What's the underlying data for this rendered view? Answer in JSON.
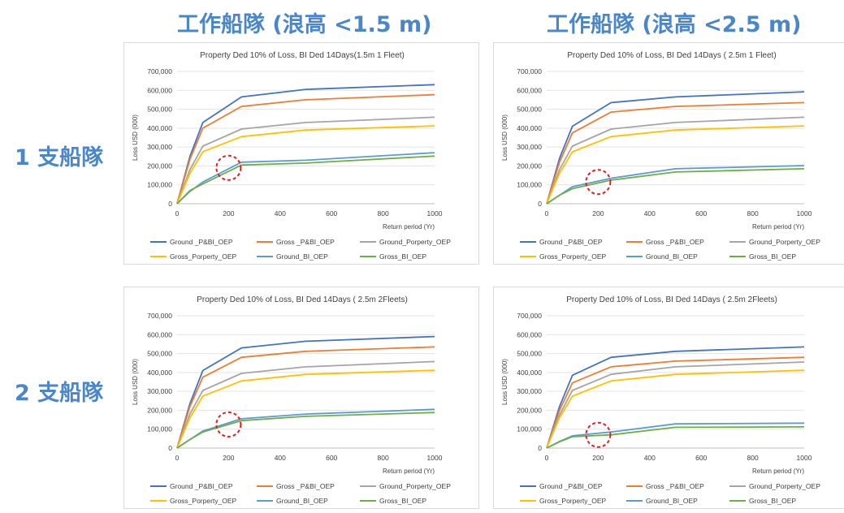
{
  "column_headers": [
    "工作船隊 (浪高 <1.5 m)",
    "工作船隊 (浪高 <2.5 m)"
  ],
  "row_headers": [
    "1 支船隊",
    "2 支船隊"
  ],
  "colors": {
    "Ground _P&BI_OEP": "#4472c4",
    "Gross _P&BI_OEP": "#ed7d31",
    "Ground_Porperty_OEP": "#a5a5a5",
    "Gross_Porperty_OEP": "#ffc000",
    "Ground_BI_OEP": "#5b9bd5",
    "Gross_BI_OEP": "#70ad47",
    "annotation_circle": "#e02020",
    "header_text": "#4a86c8"
  },
  "chart_data": [
    {
      "type": "line",
      "title": "Property Ded 10% of Loss, BI  Ded 14Days(1.5m 1 Fleet)",
      "xlabel": "Return period (Yr)",
      "ylabel": "Loss USD (000)",
      "xlim": [
        0,
        1000
      ],
      "ylim": [
        0,
        700000
      ],
      "xticks": [
        "0",
        "200",
        "400",
        "600",
        "800",
        "1000"
      ],
      "yticks": [
        "0",
        "100,000",
        "200,000",
        "300,000",
        "400,000",
        "500,000",
        "600,000",
        "700,000"
      ],
      "legend_position": "bottom",
      "annotation": {
        "type": "dashed-circle",
        "x": 200,
        "y": 190000
      },
      "x": [
        0,
        50,
        100,
        250,
        500,
        1000
      ],
      "series": [
        {
          "name": "Ground _P&BI_OEP",
          "values": [
            0,
            250000,
            430000,
            565000,
            605000,
            630000
          ]
        },
        {
          "name": "Gross _P&BI_OEP",
          "values": [
            0,
            235000,
            400000,
            515000,
            550000,
            577000
          ]
        },
        {
          "name": "Ground_Porperty_OEP",
          "values": [
            0,
            180000,
            305000,
            395000,
            430000,
            458000
          ]
        },
        {
          "name": "Gross_Porperty_OEP",
          "values": [
            0,
            160000,
            275000,
            355000,
            390000,
            412000
          ]
        },
        {
          "name": "Ground_BI_OEP",
          "values": [
            0,
            65000,
            115000,
            220000,
            230000,
            270000
          ]
        },
        {
          "name": "Gross_BI_OEP",
          "values": [
            0,
            70000,
            105000,
            205000,
            215000,
            252000
          ]
        }
      ]
    },
    {
      "type": "line",
      "title": "Property Ded 10% of Loss, BI  Ded 14Days ( 2.5m 1 Fleet)",
      "xlabel": "Return period (Yr)",
      "ylabel": "Loss USD (000)",
      "xlim": [
        0,
        1000
      ],
      "ylim": [
        0,
        700000
      ],
      "xticks": [
        "0",
        "200",
        "400",
        "600",
        "800",
        "1000"
      ],
      "yticks": [
        "0",
        "100,000",
        "200,000",
        "300,000",
        "400,000",
        "500,000",
        "600,000",
        "700,000"
      ],
      "legend_position": "bottom",
      "annotation": {
        "type": "dashed-circle",
        "x": 200,
        "y": 115000
      },
      "x": [
        0,
        50,
        100,
        250,
        500,
        1000
      ],
      "series": [
        {
          "name": "Ground _P&BI_OEP",
          "values": [
            0,
            240000,
            410000,
            535000,
            565000,
            592000
          ]
        },
        {
          "name": "Gross _P&BI_OEP",
          "values": [
            0,
            220000,
            375000,
            485000,
            515000,
            535000
          ]
        },
        {
          "name": "Ground_Porperty_OEP",
          "values": [
            0,
            180000,
            305000,
            395000,
            430000,
            458000
          ]
        },
        {
          "name": "Gross_Porperty_OEP",
          "values": [
            0,
            160000,
            275000,
            355000,
            390000,
            412000
          ]
        },
        {
          "name": "Ground_BI_OEP",
          "values": [
            0,
            45000,
            90000,
            135000,
            185000,
            202000
          ]
        },
        {
          "name": "Gross_BI_OEP",
          "values": [
            0,
            45000,
            80000,
            125000,
            168000,
            185000
          ]
        }
      ]
    },
    {
      "type": "line",
      "title": "Property Ded 10% of Loss, BI  Ded 14Days ( 2.5m  2Fleets)",
      "xlabel": "Return period (Yr)",
      "ylabel": "Loss USD (000)",
      "xlim": [
        0,
        1000
      ],
      "ylim": [
        0,
        700000
      ],
      "xticks": [
        "0",
        "200",
        "400",
        "600",
        "800",
        "1000"
      ],
      "yticks": [
        "0",
        "100,000",
        "200,000",
        "300,000",
        "400,000",
        "500,000",
        "600,000",
        "700,000"
      ],
      "legend_position": "bottom",
      "annotation": {
        "type": "dashed-circle",
        "x": 200,
        "y": 125000
      },
      "x": [
        0,
        50,
        100,
        250,
        500,
        1000
      ],
      "series": [
        {
          "name": "Ground _P&BI_OEP",
          "values": [
            0,
            235000,
            410000,
            530000,
            565000,
            590000
          ]
        },
        {
          "name": "Gross _P&BI_OEP",
          "values": [
            0,
            220000,
            375000,
            480000,
            512000,
            535000
          ]
        },
        {
          "name": "Ground_Porperty_OEP",
          "values": [
            0,
            180000,
            305000,
            395000,
            430000,
            458000
          ]
        },
        {
          "name": "Gross_Porperty_OEP",
          "values": [
            0,
            160000,
            275000,
            355000,
            390000,
            412000
          ]
        },
        {
          "name": "Ground_BI_OEP",
          "values": [
            0,
            45000,
            90000,
            155000,
            180000,
            205000
          ]
        },
        {
          "name": "Gross_BI_OEP",
          "values": [
            0,
            45000,
            85000,
            145000,
            168000,
            188000
          ]
        }
      ]
    },
    {
      "type": "line",
      "title": "Property Ded 10% of Loss, BI  Ded 14Days ( 2.5m  2Fleets)",
      "xlabel": "Return period (Yr)",
      "ylabel": "Loss USD (000)",
      "xlim": [
        0,
        1000
      ],
      "ylim": [
        0,
        700000
      ],
      "xticks": [
        "0",
        "200",
        "400",
        "600",
        "800",
        "1000"
      ],
      "yticks": [
        "0",
        "100,000",
        "200,000",
        "300,000",
        "400,000",
        "500,000",
        "600,000",
        "700,000"
      ],
      "legend_position": "bottom",
      "annotation": {
        "type": "dashed-circle",
        "x": 200,
        "y": 70000
      },
      "x": [
        0,
        50,
        100,
        250,
        500,
        1000
      ],
      "series": [
        {
          "name": "Ground _P&BI_OEP",
          "values": [
            0,
            220000,
            385000,
            480000,
            512000,
            535000
          ]
        },
        {
          "name": "Gross _P&BI_OEP",
          "values": [
            0,
            200000,
            345000,
            430000,
            460000,
            480000
          ]
        },
        {
          "name": "Ground_Porperty_OEP",
          "values": [
            0,
            175000,
            305000,
            390000,
            430000,
            455000
          ]
        },
        {
          "name": "Gross_Porperty_OEP",
          "values": [
            0,
            160000,
            275000,
            355000,
            390000,
            412000
          ]
        },
        {
          "name": "Ground_BI_OEP",
          "values": [
            0,
            35000,
            65000,
            85000,
            128000,
            132000
          ]
        },
        {
          "name": "Gross_BI_OEP",
          "values": [
            0,
            33000,
            60000,
            70000,
            110000,
            112000
          ]
        }
      ]
    }
  ]
}
